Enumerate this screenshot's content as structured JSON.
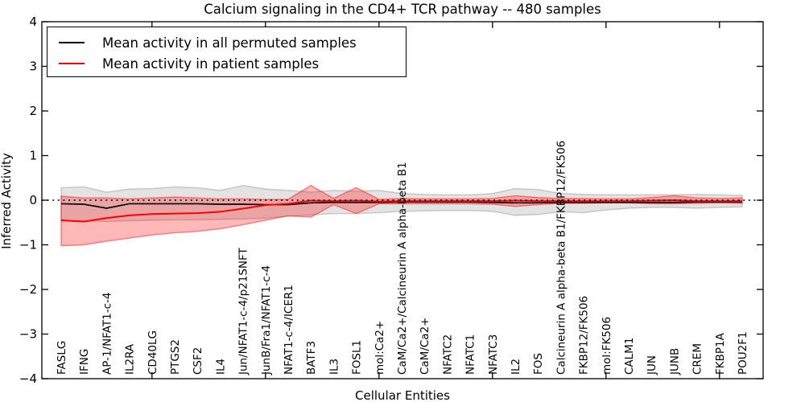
{
  "title": "Calcium signaling in the CD4+ TCR pathway -- 480 samples",
  "axes": {
    "x_label": "Cellular Entities",
    "y_label": "Inferred Activity",
    "y_tick_labels": [
      "4",
      "3",
      "2",
      "1",
      "0",
      "−1",
      "−2",
      "−3",
      "−4"
    ],
    "y_tick_values": [
      4,
      3,
      2,
      1,
      0,
      -1,
      -2,
      -3,
      -4
    ]
  },
  "legend": {
    "items": [
      {
        "label": "Mean activity in all permuted samples",
        "color": "#000000"
      },
      {
        "label": "Mean activity in patient samples",
        "color": "#ff0000"
      }
    ]
  },
  "chart_data": {
    "type": "line",
    "title": "Calcium signaling in the CD4+ TCR pathway -- 480 samples",
    "xlabel": "Cellular Entities",
    "ylabel": "Inferred Activity",
    "ylim": [
      -4,
      4
    ],
    "grid": false,
    "legend_position": "upper left",
    "baseline": 0,
    "categories": [
      "FASLG",
      "IFNG",
      "AP-1/NFAT1-c-4",
      "IL2RA",
      "CD40LG",
      "PTGS2",
      "CSF2",
      "IL4",
      "Jun/NFAT1-c-4/p21SNFT",
      "JunB/Fra1/NFAT1-c-4",
      "NFAT1-c-4/ICER1",
      "BATF3",
      "IL3",
      "FOSL1",
      "mol:Ca2+",
      "CaM/Ca2+/Calcineurin A alpha-beta B1",
      "CaM/Ca2+",
      "NFATC2",
      "NFATC1",
      "NFATC3",
      "IL2",
      "FOS",
      "Calcineurin A alpha-beta B1/FKBP12/FK506",
      "FKBP12/FK506",
      "mol:FK506",
      "CALM1",
      "JUN",
      "JUNB",
      "CREM",
      "FKBP1A",
      "POU2F1"
    ],
    "x_major_tick_indices": [
      4,
      9,
      14,
      19,
      24,
      29
    ],
    "series": [
      {
        "name": "Mean activity in all permuted samples",
        "color": "#000000",
        "values": [
          -0.08,
          -0.09,
          -0.18,
          -0.08,
          -0.08,
          -0.08,
          -0.08,
          -0.09,
          -0.09,
          -0.1,
          -0.1,
          -0.06,
          -0.05,
          -0.05,
          -0.05,
          -0.04,
          -0.04,
          -0.04,
          -0.04,
          -0.05,
          -0.06,
          -0.06,
          -0.05,
          -0.05,
          -0.05,
          -0.05,
          -0.05,
          -0.05,
          -0.04,
          -0.04,
          -0.04
        ]
      },
      {
        "name": "Mean activity in patient samples",
        "color": "#ff0000",
        "values": [
          -0.45,
          -0.48,
          -0.4,
          -0.34,
          -0.31,
          -0.3,
          -0.29,
          -0.26,
          -0.19,
          -0.11,
          -0.08,
          -0.01,
          -0.02,
          -0.01,
          -0.03,
          -0.02,
          -0.02,
          -0.02,
          -0.02,
          -0.02,
          -0.01,
          -0.02,
          -0.02,
          -0.02,
          -0.02,
          -0.02,
          -0.01,
          0.0,
          -0.02,
          -0.02,
          -0.02
        ]
      }
    ],
    "bands": [
      {
        "name": "permuted samples range",
        "fill": "rgba(0,0,0,0.11)",
        "edge": "rgba(0,0,0,0.18)",
        "hi": [
          0.28,
          0.3,
          0.18,
          0.25,
          0.26,
          0.3,
          0.28,
          0.22,
          0.33,
          0.25,
          0.22,
          0.18,
          0.22,
          0.2,
          0.22,
          0.15,
          0.13,
          0.12,
          0.12,
          0.15,
          0.26,
          0.24,
          0.15,
          0.13,
          0.12,
          0.12,
          0.12,
          0.12,
          0.13,
          0.12,
          0.11
        ],
        "lo": [
          -0.46,
          -0.46,
          -0.48,
          -0.46,
          -0.45,
          -0.44,
          -0.44,
          -0.43,
          -0.42,
          -0.4,
          -0.36,
          -0.33,
          -0.3,
          -0.3,
          -0.28,
          -0.25,
          -0.24,
          -0.23,
          -0.23,
          -0.25,
          -0.34,
          -0.32,
          -0.26,
          -0.28,
          -0.22,
          -0.18,
          -0.16,
          -0.16,
          -0.18,
          -0.16,
          -0.15
        ]
      },
      {
        "name": "patient samples range",
        "fill": "rgba(255,0,0,0.28)",
        "edge": "rgba(255,0,0,0.45)",
        "hi": [
          0.09,
          0.05,
          0.05,
          0.03,
          0.05,
          0.07,
          0.05,
          0.03,
          0.03,
          0.02,
          0.02,
          0.33,
          0.04,
          0.28,
          0.02,
          0.04,
          0.03,
          0.03,
          0.03,
          0.04,
          0.1,
          0.06,
          0.04,
          0.04,
          0.03,
          0.03,
          0.06,
          0.1,
          0.05,
          0.04,
          0.05
        ],
        "lo": [
          -1.02,
          -1.0,
          -0.92,
          -0.85,
          -0.78,
          -0.73,
          -0.7,
          -0.64,
          -0.55,
          -0.45,
          -0.35,
          -0.38,
          -0.1,
          -0.3,
          -0.08,
          -0.08,
          -0.08,
          -0.08,
          -0.08,
          -0.09,
          -0.14,
          -0.1,
          -0.07,
          -0.07,
          -0.06,
          -0.06,
          -0.08,
          -0.08,
          -0.07,
          -0.06,
          -0.07
        ]
      }
    ]
  }
}
